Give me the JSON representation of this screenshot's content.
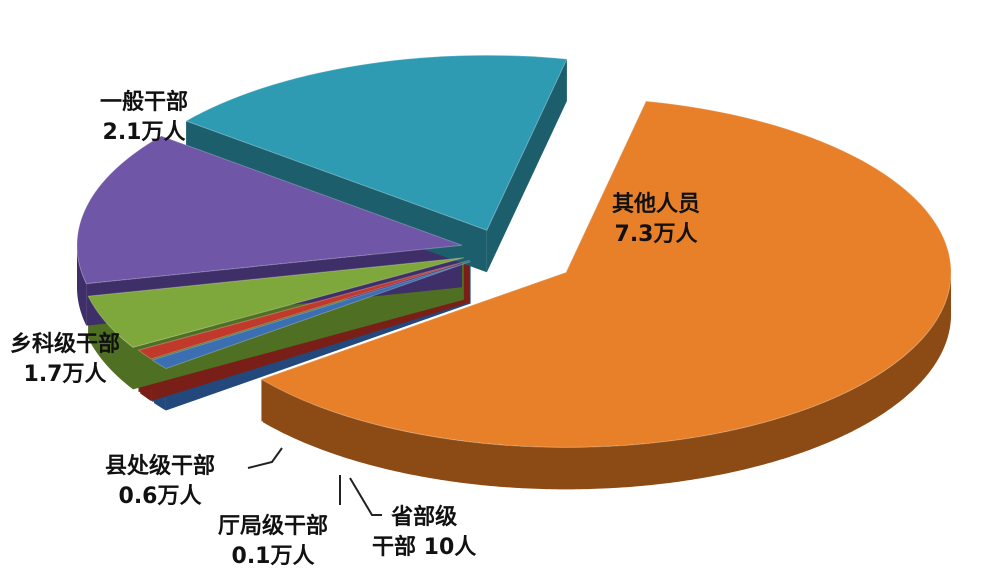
{
  "chart_data": {
    "type": "pie",
    "style": "3d-exploded",
    "unit": "万人",
    "slices": [
      {
        "name": "其他人员",
        "value": 7.3,
        "label_value": "7.3万人",
        "color": "#e8802a",
        "side_color": "#8c4b14"
      },
      {
        "name": "省部级干部",
        "value": 0.001,
        "label_name_1": "省部级",
        "label_value": "干部 10人",
        "color": "#3b6fb2",
        "side_color": "#22487c"
      },
      {
        "name": "厅局级干部",
        "value": 0.1,
        "label_value": "0.1万人",
        "color": "#c0392b",
        "side_color": "#7a1f18"
      },
      {
        "name": "县处级干部",
        "value": 0.6,
        "label_value": "0.6万人",
        "color": "#7fa83c",
        "side_color": "#4f6f22"
      },
      {
        "name": "乡科级干部",
        "value": 1.7,
        "label_value": "1.7万人",
        "color": "#6f56a6",
        "side_color": "#3f2f68"
      },
      {
        "name": "一般干部",
        "value": 2.1,
        "label_value": "2.1万人",
        "color": "#2f9bb3",
        "side_color": "#1d5e6d"
      }
    ],
    "legend": "none"
  }
}
